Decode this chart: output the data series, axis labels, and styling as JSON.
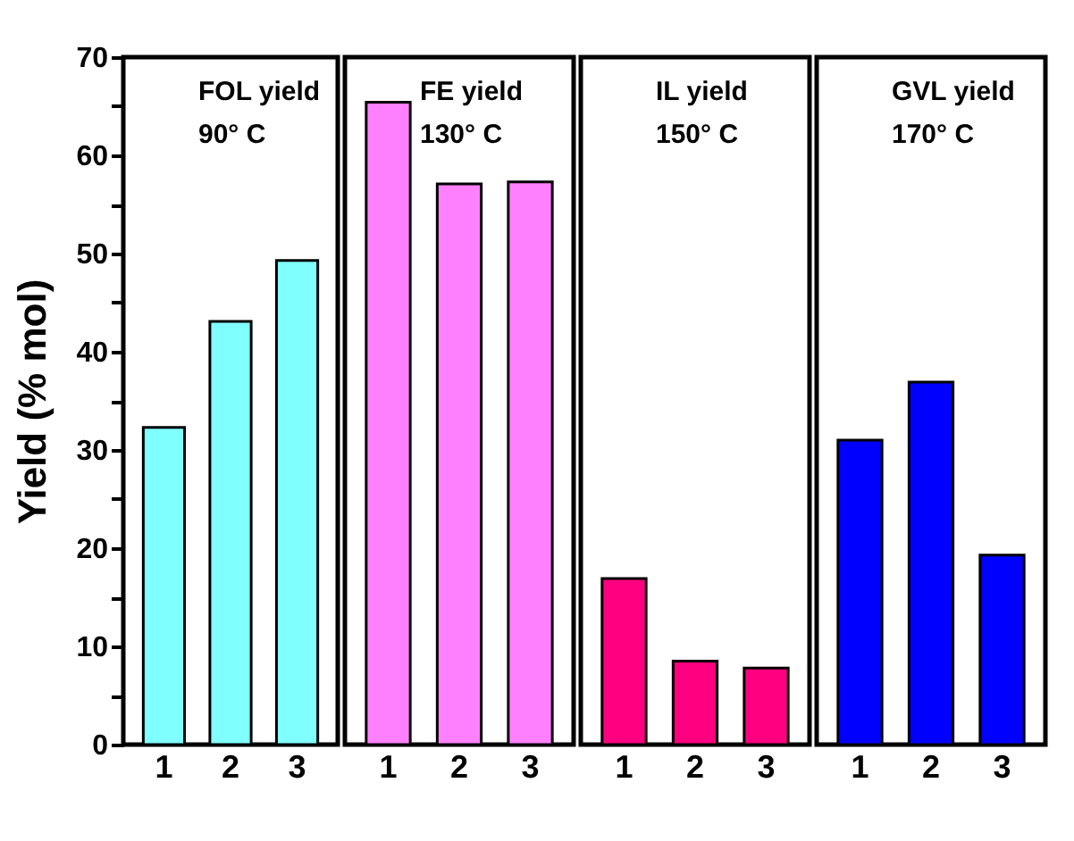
{
  "chart_data": [
    {
      "type": "bar",
      "categories": [
        "1",
        "2",
        "3"
      ],
      "values": [
        32.3,
        43.1,
        49.3
      ],
      "color": "#80ffff",
      "ylim": [
        0,
        70
      ],
      "yticks": [
        0,
        {
          "value": 5,
          "label": null
        },
        10,
        {
          "value": 15,
          "label": null
        },
        20,
        {
          "value": 25,
          "label": null
        },
        30,
        {
          "value": 35,
          "label": null
        },
        40,
        {
          "value": 45,
          "label": null
        },
        50,
        {
          "value": 55,
          "label": null
        },
        60,
        {
          "value": 65,
          "label": null
        },
        70
      ],
      "ylabel": "Yield (% mol)",
      "annotations": [
        "FOL yield",
        "90° C"
      ]
    },
    {
      "type": "bar",
      "categories": [
        "1",
        "2",
        "3"
      ],
      "values": [
        65.4,
        57.1,
        57.3
      ],
      "color": "#ff80ff",
      "ylim": [
        0,
        70
      ],
      "tick_labels": "x",
      "annotations": [
        "FE yield",
        "130° C"
      ]
    },
    {
      "type": "bar",
      "categories": [
        "1",
        "2",
        "3"
      ],
      "values": [
        16.9,
        8.5,
        7.8
      ],
      "color": "#ff0080",
      "ylim": [
        0,
        70
      ],
      "tick_labels": "x",
      "annotations": [
        "IL yield",
        "150° C"
      ]
    },
    {
      "type": "bar",
      "categories": [
        "1",
        "2",
        "3"
      ],
      "values": [
        31.0,
        36.9,
        19.3
      ],
      "color": "#0000ff",
      "ylim": [
        0,
        70
      ],
      "tick_labels": "x",
      "annotations": [
        "GVL yield",
        "170° C"
      ]
    }
  ]
}
